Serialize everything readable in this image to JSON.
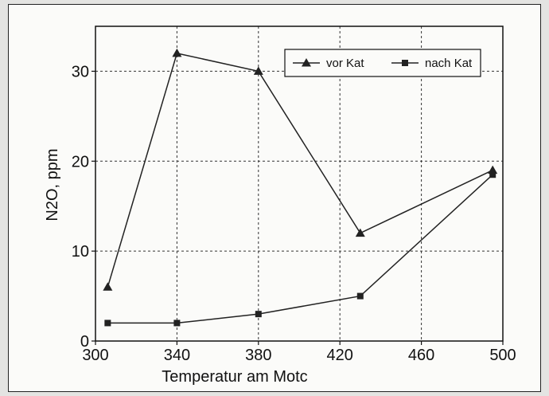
{
  "chart_data": {
    "type": "line",
    "title": "",
    "xlabel": "Temperatur am Motc",
    "ylabel": "N2O, ppm",
    "xlim": [
      300,
      500
    ],
    "ylim": [
      0,
      35
    ],
    "x_ticks": [
      300,
      340,
      380,
      420,
      460,
      500
    ],
    "y_ticks": [
      0,
      10,
      20,
      30
    ],
    "grid": true,
    "legend_position": "top-right",
    "series": [
      {
        "name": "vor Kat",
        "marker": "triangle",
        "color": "#222222",
        "x": [
          306,
          340,
          380,
          430,
          495
        ],
        "y": [
          6,
          32,
          30,
          12,
          19
        ]
      },
      {
        "name": "nach Kat",
        "marker": "square",
        "color": "#222222",
        "x": [
          306,
          340,
          380,
          430,
          495
        ],
        "y": [
          2,
          2,
          3,
          5,
          18.5
        ]
      }
    ]
  }
}
